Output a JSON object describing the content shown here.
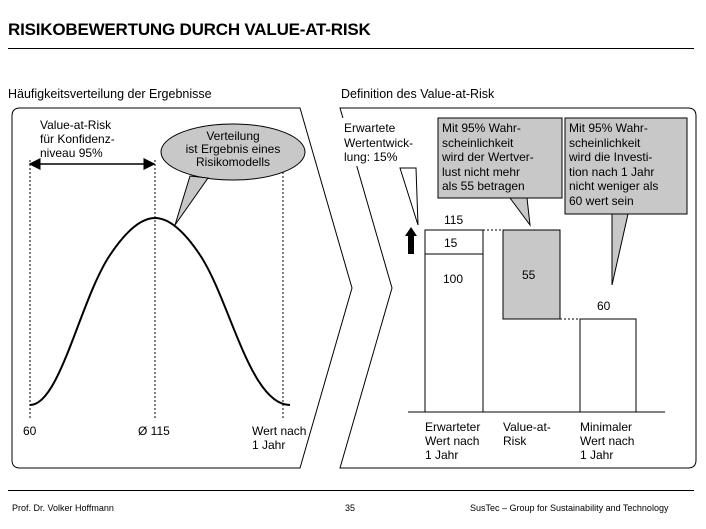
{
  "title": "RISIKOBEWERTUNG DURCH VALUE-AT-RISK",
  "left_panel": {
    "heading": "Häufigkeitsverteilung der Ergebnisse",
    "var_label": [
      "Value-at-Risk",
      "für Konfidenz-",
      "niveau 95%"
    ],
    "bubble": [
      "Verteilung",
      "ist Ergebnis eines",
      "Risikomodells"
    ],
    "axis_left": "60",
    "axis_mid": "Ø 115",
    "axis_right": [
      "Wert nach",
      "1 Jahr"
    ]
  },
  "right_panel": {
    "heading": "Definition des Value-at-Risk",
    "callout_1": [
      "Erwartete",
      "Wertentwick-",
      "lung:  15%"
    ],
    "callout_2": [
      "Mit 95%  Wahr-",
      "scheinlichkeit",
      "wird der Wertver-",
      "lust nicht mehr",
      "als 55 betragen"
    ],
    "callout_3": [
      "Mit 95%  Wahr-",
      "scheinlichkeit",
      "wird die Investi-",
      "tion nach 1 Jahr",
      "nicht weniger als",
      "60 wert sein"
    ],
    "bar_115": "115",
    "bar_15": "15",
    "bar_100": "100",
    "bar_55": "55",
    "bar_60": "60",
    "cat_1": [
      "Erwarteter",
      "Wert nach",
      "1 Jahr"
    ],
    "cat_2": [
      "Value-at-",
      "Risk"
    ],
    "cat_3": [
      "Minimaler",
      "Wert nach",
      "1 Jahr"
    ],
    "bar_fill": "#c8c8c8",
    "callout_fill": "#c8c8c8"
  },
  "footer": {
    "author": "Prof. Dr. Volker Hoffmann",
    "page": "35",
    "org": "SusTec – Group for Sustainability and Technology"
  }
}
